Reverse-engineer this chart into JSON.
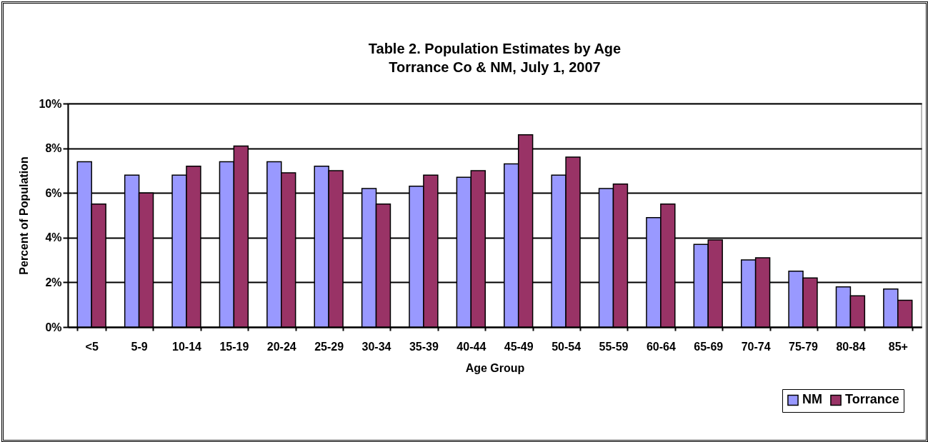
{
  "chart_data": {
    "type": "bar",
    "title": "Table 2.  Population Estimates by Age",
    "subtitle": "Torrance Co & NM, July 1, 2007",
    "xlabel": "Age Group",
    "ylabel": "Percent of Population",
    "categories": [
      "<5",
      "5-9",
      "10-14",
      "15-19",
      "20-24",
      "25-29",
      "30-34",
      "35-39",
      "40-44",
      "45-49",
      "50-54",
      "55-59",
      "60-64",
      "65-69",
      "70-74",
      "75-79",
      "80-84",
      "85+"
    ],
    "series": [
      {
        "name": "NM",
        "color": "#9999ff",
        "values": [
          7.4,
          6.8,
          6.8,
          7.4,
          7.4,
          7.2,
          6.2,
          6.3,
          6.7,
          7.3,
          6.8,
          6.2,
          4.9,
          3.7,
          3.0,
          2.5,
          1.8,
          1.7
        ]
      },
      {
        "name": "Torrance",
        "color": "#993366",
        "values": [
          5.5,
          6.0,
          7.2,
          8.1,
          6.9,
          7.0,
          5.5,
          6.8,
          7.0,
          8.6,
          7.6,
          6.4,
          5.5,
          3.9,
          3.1,
          2.2,
          1.4,
          1.2
        ]
      }
    ],
    "ylim": [
      0,
      10
    ],
    "yticks": [
      {
        "value": 0,
        "label": "0%"
      },
      {
        "value": 2,
        "label": "2%"
      },
      {
        "value": 4,
        "label": "4%"
      },
      {
        "value": 6,
        "label": "6%"
      },
      {
        "value": 8,
        "label": "8%"
      },
      {
        "value": 10,
        "label": "10%"
      }
    ],
    "grid": "y",
    "legend": "bottom right"
  }
}
